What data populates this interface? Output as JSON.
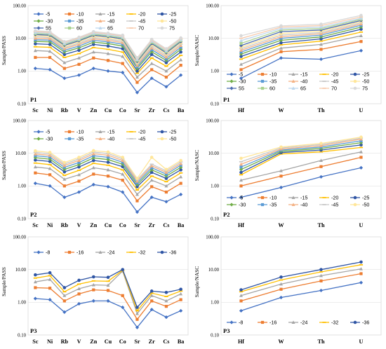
{
  "colors": {
    "c5": "#4472C4",
    "c10": "#ED7D31",
    "c15": "#A5A5A5",
    "c20": "#FFC000",
    "c25": "#2F55A4",
    "c30": "#70AD47",
    "c35": "#5B9BD5",
    "c40": "#F4B183",
    "c45": "#C9C9C9",
    "c50": "#FFE699",
    "c55": "#4C6CB0",
    "c60": "#A9D18E",
    "c65": "#BDD7EE",
    "c70": "#F8CBAD",
    "c75": "#D9D9D9"
  },
  "chart_data": [
    {
      "id": "p1-left",
      "type": "line",
      "panel_label": "P1",
      "ylabel": "Sample/PASS",
      "log_y": true,
      "ylim": [
        0.1,
        100
      ],
      "yticks": [
        "0.10",
        "1.00",
        "10.00",
        "100.00"
      ],
      "categories": [
        "Sc",
        "Ni",
        "Rb",
        "V",
        "Zn",
        "Cu",
        "Co",
        "Sr",
        "Zr",
        "Cs",
        "Ba"
      ],
      "series": [
        {
          "name": "-5",
          "color": "c5",
          "values": [
            1.2,
            1.1,
            0.6,
            0.75,
            1.2,
            1.0,
            0.9,
            0.22,
            0.6,
            0.33,
            0.75
          ]
        },
        {
          "name": "-10",
          "color": "c10",
          "values": [
            2.6,
            2.6,
            1.2,
            1.6,
            2.5,
            2.1,
            1.7,
            0.45,
            1.1,
            0.65,
            1.5
          ]
        },
        {
          "name": "-15",
          "color": "c15",
          "values": [
            4.2,
            4.0,
            1.8,
            2.5,
            3.8,
            3.4,
            2.8,
            0.65,
            1.7,
            1.0,
            2.2
          ]
        },
        {
          "name": "-20",
          "color": "c20",
          "values": [
            5.5,
            5.3,
            2.6,
            3.4,
            5.2,
            4.6,
            3.8,
            0.85,
            2.5,
            1.4,
            3.0
          ]
        },
        {
          "name": "-25",
          "color": "c25",
          "values": [
            6.8,
            6.5,
            3.2,
            4.3,
            6.5,
            5.8,
            4.8,
            1.0,
            3.2,
            1.8,
            3.8
          ]
        },
        {
          "name": "-30",
          "color": "c30",
          "values": [
            8.0,
            7.8,
            3.8,
            5.1,
            7.6,
            6.9,
            5.8,
            1.2,
            3.9,
            2.1,
            4.6
          ]
        },
        {
          "name": "-35",
          "color": "c35",
          "values": [
            9.0,
            8.8,
            4.3,
            5.8,
            8.7,
            7.8,
            6.6,
            1.35,
            4.5,
            2.4,
            5.3
          ]
        },
        {
          "name": "-40",
          "color": "c40",
          "values": [
            10.0,
            9.7,
            4.8,
            6.5,
            9.6,
            8.7,
            7.4,
            1.5,
            5.1,
            2.7,
            6.0
          ]
        },
        {
          "name": "-45",
          "color": "c45",
          "values": [
            11.0,
            10.6,
            5.2,
            7.1,
            10.5,
            9.5,
            8.1,
            1.65,
            5.7,
            3.0,
            6.6
          ]
        },
        {
          "name": "-50",
          "color": "c50",
          "values": [
            12.0,
            11.5,
            5.7,
            7.8,
            11.5,
            10.4,
            8.9,
            1.8,
            6.3,
            3.3,
            7.3
          ]
        },
        {
          "name": "55",
          "color": "c55",
          "values": [
            13.0,
            12.4,
            6.1,
            8.4,
            12.4,
            11.2,
            9.6,
            1.95,
            6.9,
            3.6,
            7.9
          ]
        },
        {
          "name": "60",
          "color": "c60",
          "values": [
            14.0,
            13.3,
            6.6,
            9.0,
            13.3,
            12.0,
            10.3,
            2.1,
            7.5,
            3.9,
            8.5
          ]
        },
        {
          "name": "65",
          "color": "c65",
          "values": [
            15.0,
            14.2,
            7.0,
            9.6,
            14.2,
            12.8,
            11.0,
            2.25,
            8.1,
            4.2,
            9.1
          ]
        },
        {
          "name": "70",
          "color": "c70",
          "values": [
            16.0,
            15.1,
            7.5,
            10.2,
            15.1,
            13.6,
            11.7,
            2.4,
            8.7,
            4.5,
            9.7
          ]
        },
        {
          "name": "75",
          "color": "c75",
          "values": [
            17.0,
            16.0,
            7.9,
            10.8,
            16.0,
            14.4,
            12.4,
            2.55,
            9.3,
            4.8,
            10.3
          ]
        }
      ],
      "legend_rows": [
        [
          "-5",
          "-10",
          "-15",
          "-20",
          "-25"
        ],
        [
          "-30",
          "-35",
          "-40",
          "-45",
          "-50"
        ],
        [
          "55",
          "60",
          "65",
          "70",
          "75"
        ]
      ],
      "legend_pos": "top"
    },
    {
      "id": "p1-right",
      "type": "line",
      "panel_label": "P1",
      "ylabel": "Sample/NASC",
      "log_y": true,
      "ylim": [
        0.1,
        100
      ],
      "yticks": [
        "0.10",
        "1.00",
        "10.00",
        "100.00"
      ],
      "categories": [
        "Hf",
        "W",
        "Th",
        "U"
      ],
      "series": [
        {
          "name": "-5",
          "color": "c5",
          "values": [
            0.6,
            2.5,
            2.3,
            4.2
          ]
        },
        {
          "name": "-10",
          "color": "c10",
          "values": [
            1.1,
            3.9,
            4.6,
            8.0
          ]
        },
        {
          "name": "-15",
          "color": "c15",
          "values": [
            1.6,
            5.0,
            6.5,
            12.0
          ]
        },
        {
          "name": "-20",
          "color": "c20",
          "values": [
            2.3,
            6.3,
            8.2,
            15.5
          ]
        },
        {
          "name": "-25",
          "color": "c25",
          "values": [
            2.8,
            7.3,
            9.6,
            19.0
          ]
        },
        {
          "name": "-30",
          "color": "c30",
          "values": [
            3.3,
            8.7,
            11.0,
            22.0
          ]
        },
        {
          "name": "-35",
          "color": "c35",
          "values": [
            3.8,
            10.0,
            12.5,
            25.0
          ]
        },
        {
          "name": "-40",
          "color": "c40",
          "values": [
            4.3,
            11.2,
            13.8,
            27.5
          ]
        },
        {
          "name": "-45",
          "color": "c45",
          "values": [
            4.8,
            12.5,
            15.0,
            30.0
          ]
        },
        {
          "name": "-50",
          "color": "c50",
          "values": [
            5.4,
            14.0,
            16.5,
            32.5
          ]
        },
        {
          "name": "55",
          "color": "c55",
          "values": [
            6.0,
            16.0,
            18.0,
            35.0
          ]
        },
        {
          "name": "60",
          "color": "c60",
          "values": [
            7.0,
            18.0,
            20.0,
            38.0
          ]
        },
        {
          "name": "65",
          "color": "c65",
          "values": [
            8.5,
            20.0,
            22.0,
            41.0
          ]
        },
        {
          "name": "70",
          "color": "c70",
          "values": [
            10.0,
            22.0,
            24.5,
            45.0
          ]
        },
        {
          "name": "75",
          "color": "c75",
          "values": [
            12.0,
            24.0,
            27.0,
            50.0
          ]
        }
      ],
      "legend_rows": [
        [
          "-5",
          "-10",
          "-15",
          "-20",
          "-25"
        ],
        [
          "-30",
          "-35",
          "-40",
          "-45",
          "-50"
        ],
        [
          "55",
          "60",
          "65",
          "70",
          "75"
        ]
      ],
      "legend_pos": "bottom"
    },
    {
      "id": "p2-left",
      "type": "line",
      "panel_label": "P2",
      "ylabel": "Sample/PASS",
      "log_y": true,
      "ylim": [
        0.1,
        100
      ],
      "yticks": [
        "0.10",
        "1.00",
        "10.00",
        "100.00"
      ],
      "categories": [
        "Sc",
        "Ni",
        "Rb",
        "V",
        "Zn",
        "Cu",
        "Co",
        "Sr",
        "Zr",
        "Cs",
        "Ba"
      ],
      "series": [
        {
          "name": "-5",
          "color": "c5",
          "values": [
            1.2,
            1.0,
            0.45,
            0.65,
            1.1,
            0.95,
            0.65,
            0.16,
            0.45,
            0.33,
            0.55
          ]
        },
        {
          "name": "-10",
          "color": "c10",
          "values": [
            2.5,
            2.2,
            1.0,
            1.4,
            2.3,
            2.0,
            1.5,
            0.35,
            0.95,
            0.65,
            1.2
          ]
        },
        {
          "name": "-15",
          "color": "c15",
          "values": [
            3.8,
            3.4,
            1.6,
            2.2,
            3.6,
            3.1,
            2.3,
            0.55,
            1.5,
            1.0,
            1.9
          ]
        },
        {
          "name": "-20",
          "color": "c20",
          "values": [
            5.0,
            4.5,
            2.1,
            3.0,
            4.9,
            4.3,
            3.1,
            0.75,
            2.0,
            1.35,
            2.5
          ]
        },
        {
          "name": "-25",
          "color": "c25",
          "values": [
            6.2,
            5.6,
            2.7,
            3.8,
            6.0,
            5.3,
            3.9,
            0.95,
            2.6,
            1.7,
            3.1
          ]
        },
        {
          "name": "-30",
          "color": "c30",
          "values": [
            7.3,
            6.6,
            3.2,
            4.5,
            7.2,
            6.4,
            4.6,
            1.1,
            3.1,
            2.0,
            3.7
          ]
        },
        {
          "name": "-35",
          "color": "c35",
          "values": [
            8.4,
            7.6,
            3.7,
            5.2,
            8.4,
            7.5,
            5.3,
            1.25,
            3.6,
            2.3,
            4.3
          ]
        },
        {
          "name": "-40",
          "color": "c40",
          "values": [
            9.5,
            8.6,
            4.2,
            6.0,
            9.6,
            8.7,
            6.0,
            1.4,
            4.1,
            2.6,
            4.8
          ]
        },
        {
          "name": "-45",
          "color": "c45",
          "values": [
            10.6,
            9.6,
            4.7,
            6.7,
            10.8,
            9.8,
            6.8,
            1.55,
            4.6,
            2.9,
            5.4
          ]
        },
        {
          "name": "-50",
          "color": "c50",
          "values": [
            11.8,
            10.6,
            5.2,
            7.5,
            12.0,
            10.9,
            7.5,
            1.7,
            7.5,
            3.2,
            6.0
          ]
        }
      ],
      "legend_rows": [
        [
          "-5",
          "-10",
          "-15",
          "-20",
          "-25"
        ],
        [
          "-30",
          "-35",
          "-40",
          "-45",
          "-50"
        ]
      ],
      "legend_pos": "top"
    },
    {
      "id": "p2-right",
      "type": "line",
      "panel_label": "P2",
      "ylabel": "Sample/NASC",
      "log_y": true,
      "ylim": [
        0.1,
        100
      ],
      "yticks": [
        "0.10",
        "1.00",
        "10.00",
        "100.00"
      ],
      "categories": [
        "Hf",
        "W",
        "Th",
        "U"
      ],
      "series": [
        {
          "name": "-5",
          "color": "c5",
          "values": [
            0.45,
            0.9,
            1.9,
            3.6
          ]
        },
        {
          "name": "-10",
          "color": "c10",
          "values": [
            1.0,
            2.0,
            3.9,
            7.5
          ]
        },
        {
          "name": "-15",
          "color": "c15",
          "values": [
            1.5,
            2.9,
            6.0,
            11.0
          ]
        },
        {
          "name": "-20",
          "color": "c20",
          "values": [
            2.2,
            9.5,
            11.0,
            15.0
          ]
        },
        {
          "name": "-25",
          "color": "c25",
          "values": [
            2.6,
            10.5,
            12.5,
            18.0
          ]
        },
        {
          "name": "-30",
          "color": "c30",
          "values": [
            3.2,
            11.5,
            14.0,
            21.0
          ]
        },
        {
          "name": "-35",
          "color": "c35",
          "values": [
            3.8,
            12.5,
            15.5,
            24.0
          ]
        },
        {
          "name": "-40",
          "color": "c40",
          "values": [
            4.6,
            13.5,
            17.0,
            27.0
          ]
        },
        {
          "name": "-45",
          "color": "c45",
          "values": [
            5.5,
            14.5,
            18.5,
            29.0
          ]
        },
        {
          "name": "-50",
          "color": "c50",
          "values": [
            7.0,
            15.5,
            20.0,
            31.0
          ]
        }
      ],
      "legend_rows": [
        [
          "-5",
          "-10",
          "-15",
          "-20",
          "-25"
        ],
        [
          "-30",
          "-35",
          "-40",
          "-45",
          "-50"
        ]
      ],
      "legend_pos": "bottom"
    },
    {
      "id": "p3-left",
      "type": "line",
      "panel_label": "P3",
      "ylabel": "Sample/PASS",
      "log_y": true,
      "ylim": [
        0.1,
        100
      ],
      "yticks": [
        "0.10",
        "1.00",
        "10.00",
        "100.00"
      ],
      "categories": [
        "Sc",
        "Ni",
        "Rb",
        "V",
        "Zn",
        "Cu",
        "Co",
        "Sr",
        "Zr",
        "Cs",
        "Ba"
      ],
      "series": [
        {
          "name": "-8",
          "color": "c5",
          "values": [
            1.3,
            1.2,
            0.5,
            0.9,
            1.1,
            1.1,
            0.7,
            0.17,
            0.6,
            0.35,
            0.55
          ]
        },
        {
          "name": "-16",
          "color": "c10",
          "values": [
            2.8,
            2.7,
            1.1,
            1.8,
            2.4,
            2.3,
            1.6,
            0.3,
            1.1,
            0.75,
            1.2
          ]
        },
        {
          "name": "-24",
          "color": "c15",
          "values": [
            4.2,
            5.0,
            1.6,
            2.6,
            3.4,
            3.3,
            9.0,
            0.45,
            1.6,
            1.1,
            1.8
          ]
        },
        {
          "name": "-32",
          "color": "c20",
          "values": [
            5.5,
            6.5,
            2.1,
            3.6,
            4.5,
            4.4,
            9.5,
            0.55,
            1.9,
            1.5,
            2.2
          ]
        },
        {
          "name": "-36",
          "color": "c25",
          "values": [
            6.9,
            8.0,
            2.8,
            4.7,
            6.0,
            5.8,
            10.0,
            0.7,
            2.2,
            2.0,
            2.5
          ]
        }
      ],
      "legend_rows": [
        [
          "-8",
          "-16",
          "-24",
          "-32",
          "-36"
        ]
      ],
      "legend_pos": "top"
    },
    {
      "id": "p3-right",
      "type": "line",
      "panel_label": "P3",
      "ylabel": "Sample/NASC",
      "log_y": true,
      "ylim": [
        0.1,
        100
      ],
      "yticks": [
        "0.10",
        "1.00",
        "10.00",
        "100.00"
      ],
      "categories": [
        "Hf",
        "W",
        "Th",
        "U"
      ],
      "series": [
        {
          "name": "-8",
          "color": "c5",
          "values": [
            0.55,
            1.4,
            2.3,
            4.0
          ]
        },
        {
          "name": "-16",
          "color": "c10",
          "values": [
            1.1,
            2.5,
            4.5,
            7.5
          ]
        },
        {
          "name": "-24",
          "color": "c15",
          "values": [
            1.6,
            3.6,
            6.5,
            10.5
          ]
        },
        {
          "name": "-32",
          "color": "c20",
          "values": [
            2.1,
            4.8,
            8.5,
            14.0
          ]
        },
        {
          "name": "-36",
          "color": "c25",
          "values": [
            2.4,
            5.9,
            10.0,
            17.0
          ]
        }
      ],
      "legend_rows": [
        [
          "-8",
          "-16",
          "-24",
          "-32",
          "-36"
        ]
      ],
      "legend_pos": "bottom"
    }
  ]
}
